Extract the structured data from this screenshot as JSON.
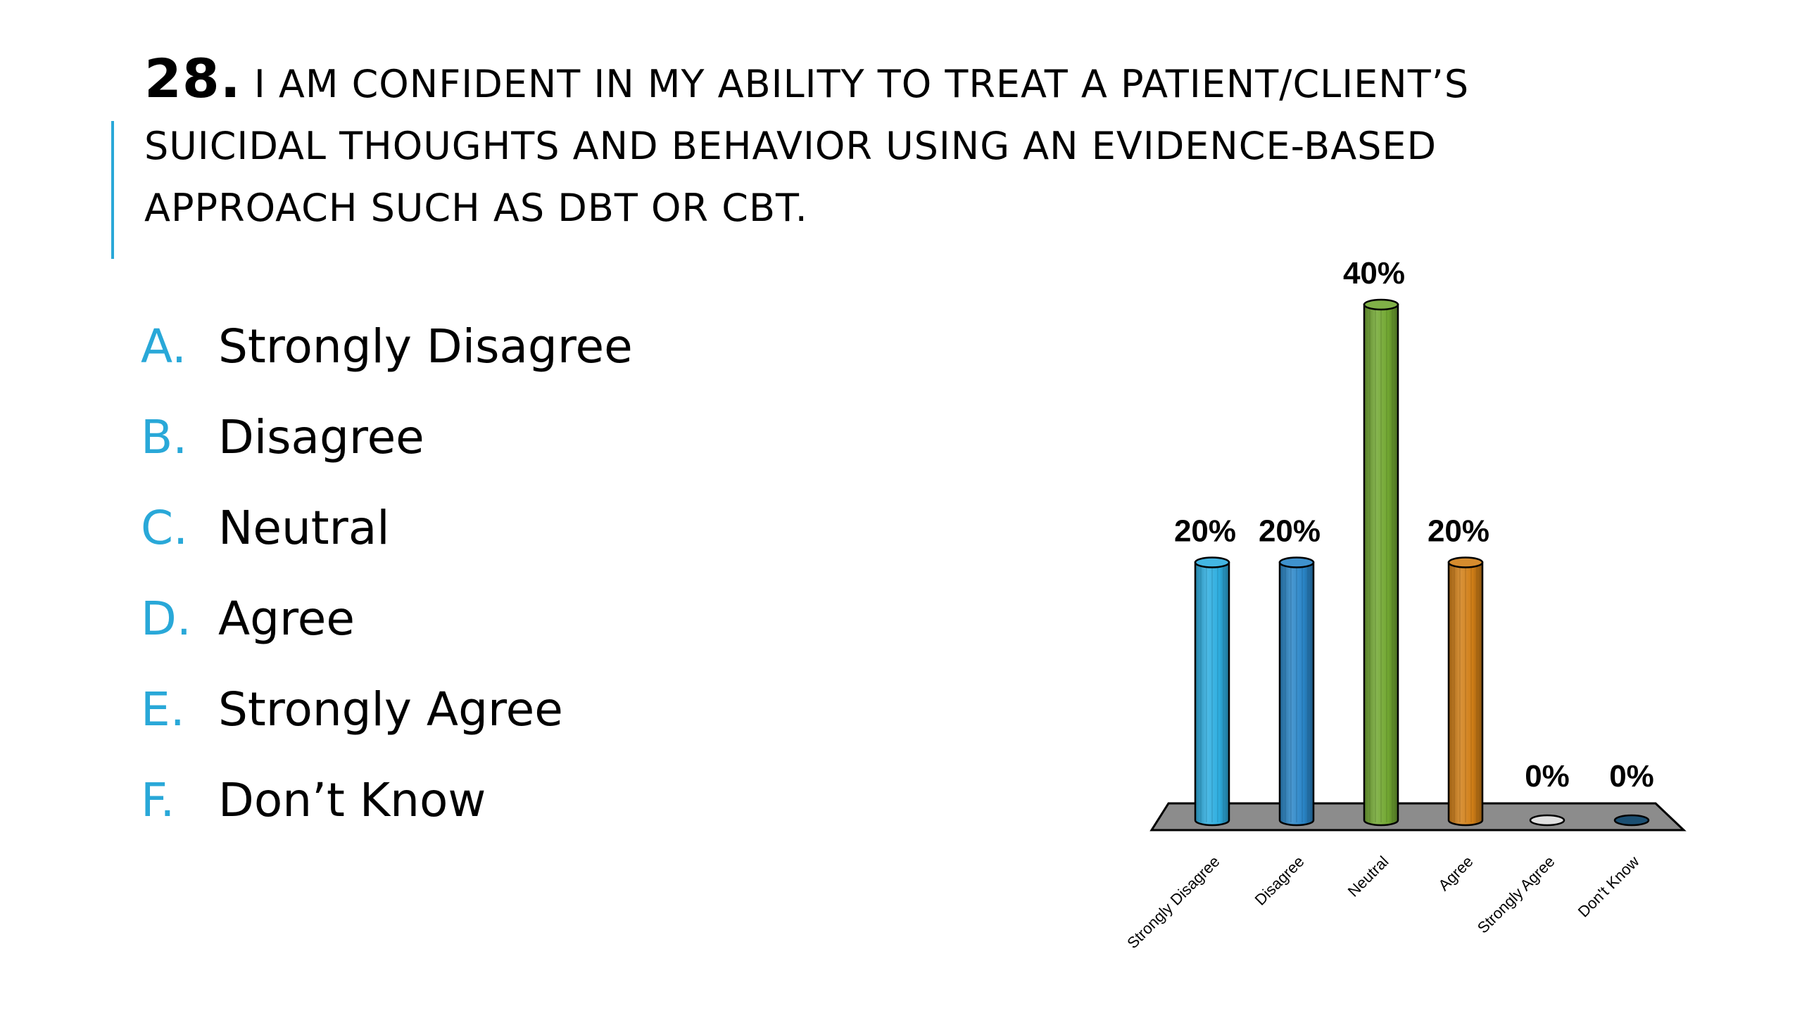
{
  "title": {
    "number": "28.",
    "line1": "I AM CONFIDENT IN MY ABILITY TO TREAT A PATIENT/CLIENT’S",
    "line2": "SUICIDAL THOUGHTS AND BEHAVIOR USING AN EVIDENCE-BASED",
    "line3": "APPROACH SUCH AS DBT OR CBT."
  },
  "options": [
    {
      "letter": "A.",
      "text": "Strongly Disagree"
    },
    {
      "letter": "B.",
      "text": "Disagree"
    },
    {
      "letter": "C.",
      "text": "Neutral"
    },
    {
      "letter": "D.",
      "text": "Agree"
    },
    {
      "letter": "E.",
      "text": "Strongly Agree"
    },
    {
      "letter": "F.",
      "text": "Don’t Know"
    }
  ],
  "colors": {
    "accent": "#29a8d8",
    "floor": "#8c8c8c"
  },
  "chart_data": {
    "type": "bar",
    "categories": [
      "Strongly Disagree",
      "Disagree",
      "Neutral",
      "Agree",
      "Strongly Agree",
      "Don't Know"
    ],
    "values": [
      20,
      20,
      40,
      20,
      0,
      0
    ],
    "data_labels": [
      "20%",
      "20%",
      "40%",
      "20%",
      "0%",
      "0%"
    ],
    "colors": [
      "#2eaee0",
      "#2a86c8",
      "#72a832",
      "#d17f17",
      "#e0e0e0",
      "#1b4f72"
    ],
    "title": "",
    "xlabel": "",
    "ylabel": "",
    "ylim": [
      0,
      40
    ],
    "grid": false,
    "legend": "none"
  }
}
